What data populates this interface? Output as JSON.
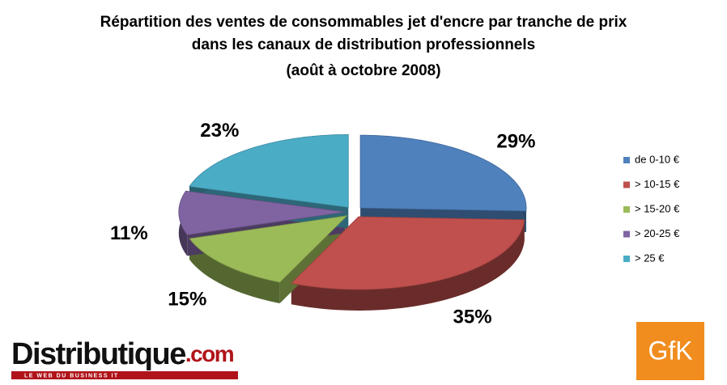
{
  "chart_data": {
    "type": "pie",
    "title": [
      "Répartition des ventes de consommables jet d'encre par tranche de prix",
      "dans les canaux de distribution professionnels",
      "(août à octobre 2008)"
    ],
    "categories": [
      "de 0-10 €",
      "> 10-15 €",
      "> 15-20 €",
      "> 20-25 €",
      "> 25 €"
    ],
    "values": [
      29,
      35,
      15,
      11,
      23
    ],
    "value_labels": [
      "29%",
      "35%",
      "15%",
      "11%",
      "23%"
    ],
    "colors": [
      "#4f81bd",
      "#c0504d",
      "#9bbb59",
      "#8064a2",
      "#4bacc6"
    ],
    "legend": "right"
  },
  "logos": {
    "left": "Distributique",
    "left_suffix": ".com",
    "tagline": "LE WEB DU BUSINESS IT",
    "right": "GfK"
  }
}
